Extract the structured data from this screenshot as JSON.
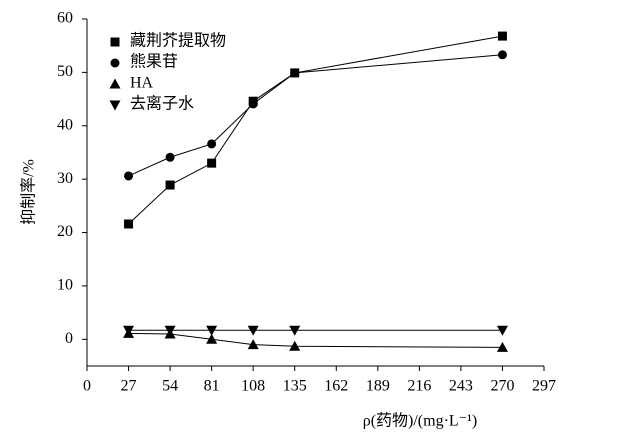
{
  "chart_data": {
    "type": "line",
    "x_label": "ρ(药物)/(mg·L⁻¹)",
    "y_label": "抑制率/%",
    "x": [
      27,
      54,
      81,
      108,
      135,
      270
    ],
    "xlim": [
      0,
      297
    ],
    "xticks": [
      0,
      27,
      54,
      81,
      108,
      135,
      162,
      189,
      216,
      243,
      270,
      297
    ],
    "ylim": [
      -5,
      60
    ],
    "yticks": [
      0,
      10,
      20,
      30,
      40,
      50,
      60
    ],
    "legend": "upper left",
    "series": [
      {
        "name": "藏荆芥提取物",
        "color": "#000000",
        "marker": "square",
        "values": [
          21.6,
          28.9,
          33.0,
          44.6,
          49.9,
          56.8
        ]
      },
      {
        "name": "熊果苷",
        "color": "#000000",
        "marker": "circle",
        "values": [
          30.6,
          34.1,
          36.6,
          44.1,
          49.9,
          53.3
        ]
      },
      {
        "name": "HA",
        "color": "#000000",
        "marker": "triangle-up",
        "values": [
          1.1,
          1.0,
          0.0,
          -1.0,
          -1.3,
          -1.5
        ]
      },
      {
        "name": "去离子水",
        "color": "#000000",
        "marker": "triangle-down",
        "values": [
          1.7,
          1.7,
          1.7,
          1.7,
          1.7,
          1.7
        ]
      }
    ]
  }
}
